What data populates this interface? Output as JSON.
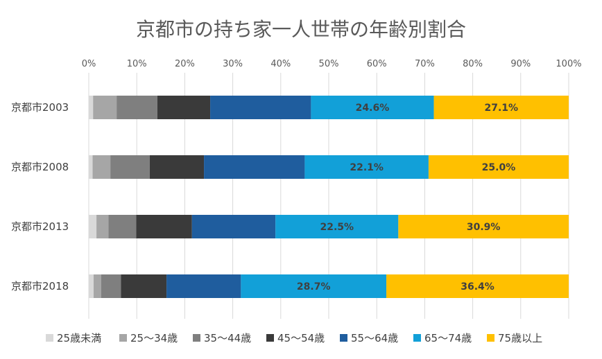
{
  "chart_data": {
    "type": "bar",
    "orientation": "horizontal",
    "stacked": "percent",
    "title": "京都市の持ち家一人世帯の年齢別割合",
    "categories": [
      "京都市2003",
      "京都市2008",
      "京都市2013",
      "京都市2018"
    ],
    "xlim": [
      0,
      100
    ],
    "xticks": [
      "0%",
      "10%",
      "20%",
      "30%",
      "40%",
      "50%",
      "60%",
      "70%",
      "80%",
      "90%",
      "100%"
    ],
    "grid": "vertical",
    "legend_position": "bottom",
    "series": [
      {
        "name": "25歳未満",
        "color": "#d9d9d9",
        "values": [
          0.9,
          0.8,
          1.6,
          1.0
        ],
        "labels": [
          "",
          "",
          "",
          ""
        ]
      },
      {
        "name": "25～34歳",
        "color": "#a6a6a6",
        "values": [
          4.9,
          3.7,
          2.5,
          1.6
        ],
        "labels": [
          "",
          "",
          "",
          ""
        ]
      },
      {
        "name": "35～44歳",
        "color": "#7f7f7f",
        "values": [
          8.5,
          8.2,
          5.8,
          4.1
        ],
        "labels": [
          "",
          "",
          "",
          ""
        ]
      },
      {
        "name": "45～54歳",
        "color": "#3a3a3a",
        "values": [
          11.0,
          11.3,
          11.6,
          9.5
        ],
        "labels": [
          "",
          "",
          "",
          ""
        ]
      },
      {
        "name": "55～64歳",
        "color": "#1f5d9e",
        "values": [
          21.0,
          21.0,
          17.4,
          15.5
        ],
        "labels": [
          "",
          "",
          "",
          ""
        ]
      },
      {
        "name": "65～74歳",
        "color": "#12a0d8",
        "values": [
          25.6,
          25.8,
          25.6,
          30.3
        ],
        "labels": [
          "24.6%",
          "22.1%",
          "22.5%",
          "28.7%"
        ]
      },
      {
        "name": "75歳以上",
        "color": "#ffc000",
        "values": [
          28.1,
          29.2,
          35.5,
          38.0
        ],
        "labels": [
          "27.1%",
          "25.0%",
          "30.9%",
          "36.4%"
        ]
      }
    ]
  }
}
